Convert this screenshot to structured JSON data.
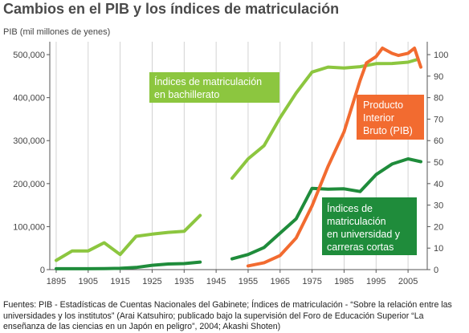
{
  "chart_data": {
    "type": "line",
    "title": "Cambios en el PIB y los índices de matriculación",
    "ylabel_left": "PIB (mil millones de yenes)",
    "xlim": [
      1893,
      2011
    ],
    "ylim_left": [
      0,
      530000
    ],
    "ylim_right": [
      0,
      106
    ],
    "x_ticks": [
      1895,
      1905,
      1915,
      1925,
      1935,
      1945,
      1955,
      1965,
      1975,
      1985,
      1995,
      2005
    ],
    "y_left_ticks": [
      0,
      100000,
      200000,
      300000,
      400000,
      500000
    ],
    "y_left_tick_labels": [
      "0",
      "100,000",
      "200,000",
      "300,000",
      "400,000",
      "500,000"
    ],
    "y_right_ticks": [
      0,
      10,
      20,
      30,
      40,
      50,
      60,
      70,
      80,
      90,
      100
    ],
    "y_right_tick_labels": [
      "0",
      "10",
      "20",
      "30",
      "40",
      "50",
      "60",
      "70",
      "80",
      "90",
      "100"
    ],
    "grid": "vertical",
    "colors": {
      "bachillerato": "#8cc63f",
      "universidad": "#1f8c3b",
      "pib": "#f26b30",
      "grid": "#c8c8c8"
    },
    "series": [
      {
        "key": "bachillerato",
        "axis": "right",
        "segments": [
          [
            [
              1895,
              4.3
            ],
            [
              1900,
              8.7
            ],
            [
              1905,
              8.7
            ],
            [
              1910,
              12.5
            ],
            [
              1915,
              7.0
            ],
            [
              1920,
              15.5
            ],
            [
              1925,
              16.5
            ],
            [
              1930,
              17.3
            ],
            [
              1935,
              17.8
            ],
            [
              1940,
              25.2
            ]
          ],
          [
            [
              1950,
              42.5
            ],
            [
              1955,
              51.5
            ],
            [
              1960,
              57.7
            ],
            [
              1965,
              70.7
            ],
            [
              1970,
              82.1
            ],
            [
              1975,
              91.9
            ],
            [
              1980,
              94.2
            ],
            [
              1985,
              93.8
            ],
            [
              1990,
              94.4
            ],
            [
              1995,
              95.8
            ],
            [
              2000,
              95.9
            ],
            [
              2005,
              96.5
            ],
            [
              2008,
              97.8
            ]
          ]
        ]
      },
      {
        "key": "universidad",
        "axis": "right",
        "segments": [
          [
            [
              1895,
              0.4
            ],
            [
              1900,
              0.4
            ],
            [
              1905,
              0.4
            ],
            [
              1910,
              0.5
            ],
            [
              1915,
              0.6
            ],
            [
              1920,
              1.0
            ],
            [
              1925,
              2.0
            ],
            [
              1930,
              2.6
            ],
            [
              1935,
              2.8
            ],
            [
              1940,
              3.5
            ]
          ],
          [
            [
              1950,
              5.0
            ],
            [
              1955,
              7.0
            ],
            [
              1960,
              10.3
            ],
            [
              1965,
              17.0
            ],
            [
              1970,
              23.6
            ],
            [
              1975,
              37.8
            ],
            [
              1980,
              37.4
            ],
            [
              1985,
              37.6
            ],
            [
              1990,
              36.3
            ],
            [
              1995,
              44.2
            ],
            [
              2000,
              49.1
            ],
            [
              2005,
              51.5
            ],
            [
              2009,
              50.2
            ]
          ]
        ]
      },
      {
        "key": "pib",
        "axis": "left",
        "segments": [
          [
            [
              1955,
              8600
            ],
            [
              1960,
              16000
            ],
            [
              1965,
              32900
            ],
            [
              1970,
              73300
            ],
            [
              1975,
              148300
            ],
            [
              1980,
              240200
            ],
            [
              1985,
              320400
            ],
            [
              1990,
              440100
            ],
            [
              1992,
              480700
            ],
            [
              1995,
              495200
            ],
            [
              1997,
              515000
            ],
            [
              2000,
              502900
            ],
            [
              2002,
              498000
            ],
            [
              2005,
              503200
            ],
            [
              2007,
              515000
            ],
            [
              2009,
              471100
            ]
          ]
        ]
      }
    ],
    "callouts": [
      {
        "key": "bachillerato",
        "lines": [
          "Índices de matriculación",
          "en bachillerato"
        ],
        "bg": "#8cc63f"
      },
      {
        "key": "pib",
        "lines": [
          "Producto",
          "Interior",
          "Bruto (PIB)"
        ],
        "bg": "#f26b30"
      },
      {
        "key": "universidad",
        "lines": [
          "Índices de",
          "matriculación",
          "en universidad y",
          "carreras cortas"
        ],
        "bg": "#1f8c3b"
      }
    ]
  },
  "footer": "Fuentes: PIB - Estadísticas de Cuentas Nacionales del Gabinete; Índices de matriculación - “Sobre la relación entre las universidades y los institutos” (Arai Katsuhiro; publicado bajo la supervisión del Foro de Educación Superior “La enseñanza de las ciencias en un Japón en peligro”, 2004; Akashi Shoten)"
}
